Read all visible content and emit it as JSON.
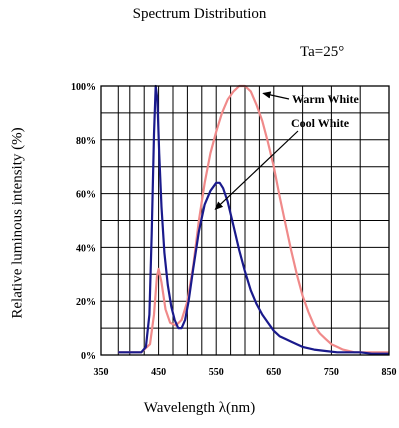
{
  "chart_data": {
    "type": "line",
    "title": "Spectrum Distribution",
    "condition": "Ta=25°",
    "xlabel": "Wavelength  λ(nm)",
    "ylabel": "Relative luminous intensity (%)",
    "xlim": [
      350,
      850
    ],
    "ylim": [
      0,
      100
    ],
    "x_ticks": [
      350,
      450,
      550,
      650,
      750,
      850
    ],
    "x_tick_labels": [
      "350",
      "450",
      "550",
      "650",
      "750",
      "850"
    ],
    "x_grid": [
      350,
      380,
      400,
      425,
      450,
      475,
      500,
      525,
      550,
      575,
      600,
      625,
      650,
      700,
      750,
      800,
      850
    ],
    "y_ticks": [
      0,
      20,
      40,
      60,
      80,
      100
    ],
    "y_tick_labels": [
      "0%",
      "20%",
      "40%",
      "60%",
      "80%",
      "100%"
    ],
    "y_grid": [
      0,
      10,
      20,
      30,
      40,
      50,
      60,
      70,
      80,
      90,
      100
    ],
    "grid": true,
    "series": [
      {
        "name": "Warm White",
        "color": "#f08a8a",
        "x": [
          380,
          420,
          435,
          442,
          447,
          450,
          455,
          462,
          470,
          480,
          490,
          500,
          510,
          520,
          530,
          540,
          550,
          560,
          570,
          580,
          590,
          600,
          610,
          620,
          630,
          640,
          650,
          660,
          670,
          680,
          690,
          700,
          710,
          720,
          730,
          740,
          750,
          760,
          770,
          780,
          790,
          800,
          810,
          820,
          830,
          840,
          850
        ],
        "y": [
          1,
          1,
          4,
          15,
          29,
          32,
          27,
          17,
          12,
          11,
          13,
          20,
          33,
          50,
          64,
          75,
          83,
          90,
          95,
          98,
          100,
          100,
          98,
          93,
          87,
          79,
          70,
          59,
          49,
          39,
          30,
          22,
          16,
          11,
          8,
          6,
          4,
          3,
          2,
          1.5,
          1,
          1,
          1,
          1,
          1,
          1,
          1
        ]
      },
      {
        "name": "Cool White",
        "color": "#1a1a8c",
        "x": [
          380,
          410,
          420,
          428,
          434,
          438,
          442,
          445,
          448,
          451,
          455,
          460,
          466,
          472,
          478,
          484,
          490,
          496,
          502,
          510,
          520,
          530,
          540,
          550,
          556,
          562,
          570,
          580,
          590,
          600,
          610,
          620,
          630,
          640,
          650,
          660,
          670,
          680,
          690,
          700,
          720,
          740,
          760,
          780,
          800,
          820,
          850
        ],
        "y": [
          1,
          1,
          1,
          3,
          15,
          45,
          82,
          100,
          95,
          75,
          55,
          38,
          26,
          18,
          13,
          10,
          10,
          13,
          20,
          32,
          46,
          56,
          61,
          64,
          64,
          62,
          57,
          48,
          39,
          31,
          24,
          19,
          15,
          12,
          9,
          7,
          6,
          5,
          4,
          3,
          2,
          1.5,
          1,
          1,
          1,
          0.5,
          0.5
        ]
      }
    ],
    "annotations": [
      {
        "text": "Warm White",
        "points_to_series": "Warm White",
        "x": 625,
        "y": 98
      },
      {
        "text": "Cool White",
        "points_to_series": "Cool White",
        "x": 573,
        "y": 52
      }
    ]
  }
}
